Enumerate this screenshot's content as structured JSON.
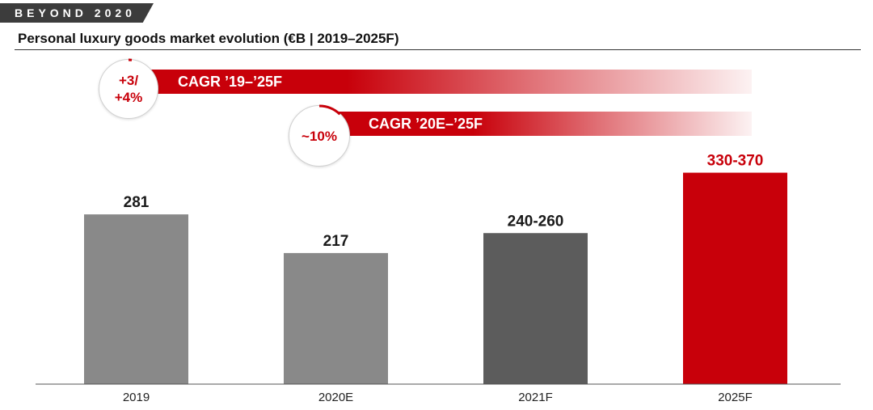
{
  "header": {
    "tag": "BEYOND 2020",
    "title": "Personal luxury goods market evolution (€B | 2019–2025F)"
  },
  "cagr": [
    {
      "circle_line1": "+3/",
      "circle_line2": "+4%",
      "label": "CAGR ’19–’25F"
    },
    {
      "circle_line1": "~10%",
      "circle_line2": "",
      "label": "CAGR ’20E–’25F"
    }
  ],
  "colors": {
    "accent": "#c8000a",
    "bar_gray": "#898989",
    "bar_dark": "#5c5c5c"
  },
  "chart_data": {
    "type": "bar",
    "title": "Personal luxury goods market evolution (€B | 2019–2025F)",
    "categories": [
      "2019",
      "2020E",
      "2021F",
      "2025F"
    ],
    "values": [
      281,
      217,
      250,
      350
    ],
    "value_labels": [
      "281",
      "217",
      "240-260",
      "330-370"
    ],
    "ranges": [
      null,
      null,
      [
        240,
        260
      ],
      [
        330,
        370
      ]
    ],
    "bar_colors": [
      "#898989",
      "#898989",
      "#5c5c5c",
      "#c8000a"
    ],
    "label_colors": [
      "#1a1a1a",
      "#1a1a1a",
      "#1a1a1a",
      "#c8000a"
    ],
    "ylim": [
      0,
      370
    ],
    "grid": false,
    "xlabel": "",
    "ylabel": ""
  }
}
